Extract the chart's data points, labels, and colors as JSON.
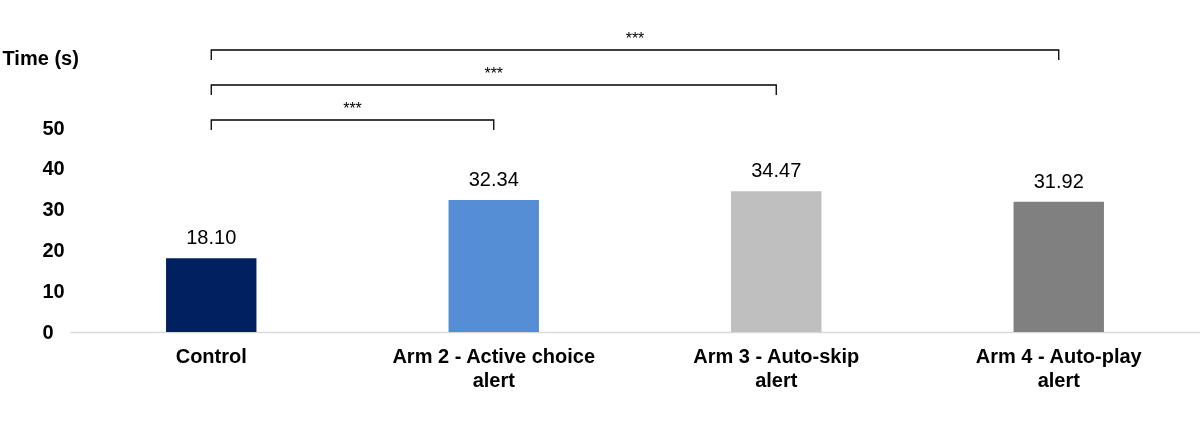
{
  "chart_data": {
    "type": "bar",
    "ylabel": "Time (s)",
    "categories": [
      "Control",
      "Arm 2 - Active choice alert",
      "Arm 3 - Auto-skip alert",
      "Arm 4 - Auto-play alert"
    ],
    "values": [
      18.1,
      32.34,
      34.47,
      31.92
    ],
    "value_labels": [
      "18.10",
      "32.34",
      "34.47",
      "31.92"
    ],
    "colors": [
      "#002060",
      "#558ed5",
      "#bfbfbf",
      "#808080"
    ],
    "ylim": [
      0,
      50
    ],
    "yticks": [
      0,
      10,
      20,
      30,
      40,
      50
    ],
    "annotations": [
      "***",
      "***",
      "***"
    ]
  }
}
